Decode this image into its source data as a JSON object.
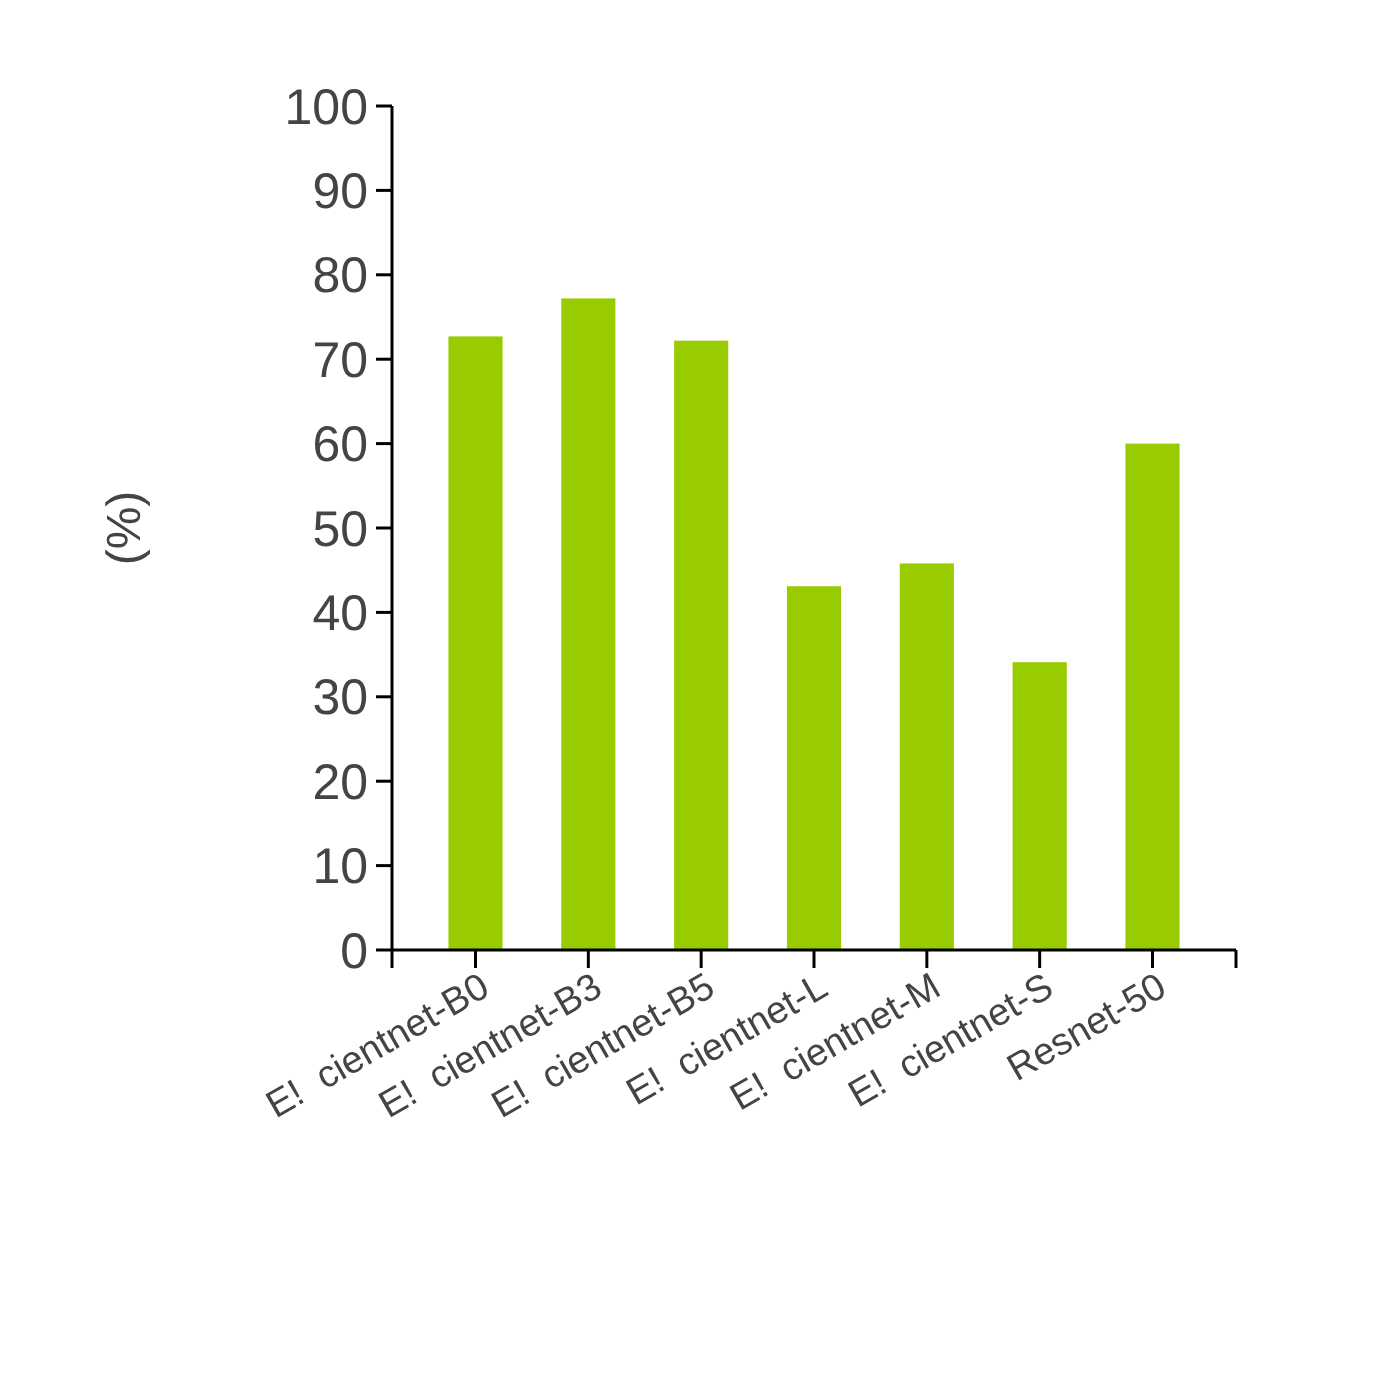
{
  "chart_data": {
    "type": "bar",
    "ylabel": "(%)",
    "categories": [
      "E!  cientnet-B0",
      "E!  cientnet-B3",
      "E!  cientnet-B5",
      "E!  cientnet-L",
      "E!  cientnet-M",
      "E!  cientnet-S",
      "Resnet-50"
    ],
    "values": [
      72.7,
      77.2,
      72.2,
      43.1,
      45.8,
      34.1,
      60.0
    ],
    "color": "#99cc00",
    "ylim": [
      0,
      100
    ],
    "yticks": [
      0,
      10,
      20,
      30,
      40,
      50,
      60,
      70,
      80,
      90,
      100
    ]
  }
}
